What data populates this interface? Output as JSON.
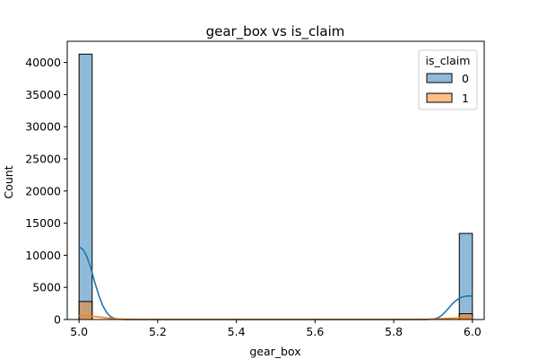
{
  "chart_data": {
    "type": "bar",
    "title": "gear_box vs is_claim",
    "xlabel": "gear_box",
    "ylabel": "Count",
    "xlim": [
      4.97,
      6.03
    ],
    "ylim": [
      0,
      43300
    ],
    "x_ticks": [
      "5.0",
      "5.2",
      "5.4",
      "5.6",
      "5.8",
      "6.0"
    ],
    "x_tick_values": [
      5.0,
      5.2,
      5.4,
      5.6,
      5.8,
      6.0
    ],
    "y_ticks": [
      "0",
      "5000",
      "10000",
      "15000",
      "20000",
      "25000",
      "30000",
      "35000",
      "40000"
    ],
    "y_tick_values": [
      0,
      5000,
      10000,
      15000,
      20000,
      25000,
      30000,
      35000,
      40000
    ],
    "grid": false,
    "legend": {
      "title": "is_claim",
      "placement": "top-right"
    },
    "bin_width": 0.0333,
    "series": [
      {
        "name": "0",
        "color": "#1f77b4",
        "bars": [
          {
            "x_start": 5.0,
            "x_end": 5.0333,
            "value": 41300
          },
          {
            "x_start": 5.9667,
            "x_end": 6.0,
            "value": 13400
          }
        ],
        "kde": [
          [
            5.0,
            11300
          ],
          [
            5.01,
            10900
          ],
          [
            5.02,
            9800
          ],
          [
            5.03,
            8000
          ],
          [
            5.04,
            5800
          ],
          [
            5.05,
            3800
          ],
          [
            5.06,
            2200
          ],
          [
            5.07,
            1100
          ],
          [
            5.08,
            450
          ],
          [
            5.09,
            160
          ],
          [
            5.1,
            50
          ],
          [
            5.12,
            0
          ],
          [
            5.88,
            0
          ],
          [
            5.9,
            60
          ],
          [
            5.91,
            200
          ],
          [
            5.92,
            550
          ],
          [
            5.93,
            1100
          ],
          [
            5.94,
            1800
          ],
          [
            5.95,
            2500
          ],
          [
            5.96,
            3050
          ],
          [
            5.97,
            3400
          ],
          [
            5.98,
            3600
          ],
          [
            5.99,
            3680
          ],
          [
            6.0,
            3650
          ]
        ]
      },
      {
        "name": "1",
        "color": "#ff7f0e",
        "bars": [
          {
            "x_start": 5.0,
            "x_end": 5.0333,
            "value": 2800
          },
          {
            "x_start": 5.9667,
            "x_end": 6.0,
            "value": 900
          }
        ],
        "kde": [
          [
            5.0,
            600
          ],
          [
            5.02,
            560
          ],
          [
            5.04,
            460
          ],
          [
            5.06,
            320
          ],
          [
            5.08,
            180
          ],
          [
            5.1,
            80
          ],
          [
            5.12,
            20
          ],
          [
            5.15,
            0
          ],
          [
            5.85,
            0
          ],
          [
            5.88,
            20
          ],
          [
            5.9,
            60
          ],
          [
            5.92,
            120
          ],
          [
            5.94,
            180
          ],
          [
            5.96,
            220
          ],
          [
            5.98,
            240
          ],
          [
            6.0,
            240
          ]
        ]
      }
    ]
  }
}
